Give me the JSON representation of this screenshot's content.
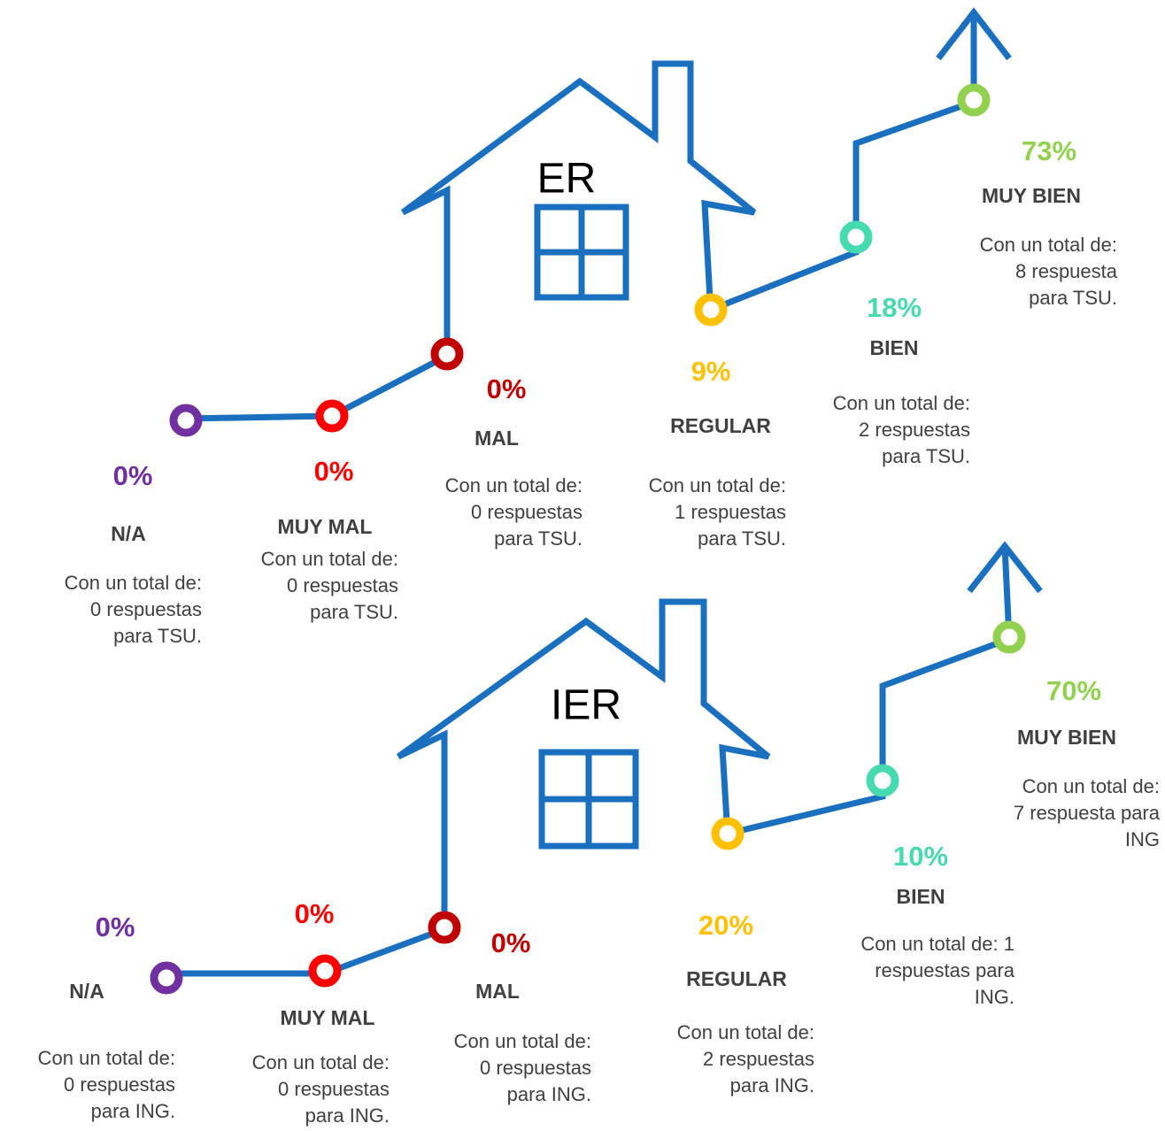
{
  "panels": [
    {
      "title": "ER",
      "items": [
        {
          "percent": "0%",
          "label": "N/A",
          "description": [
            "Con un total de:",
            "0 respuestas",
            "para TSU."
          ]
        },
        {
          "percent": "0%",
          "label": "MUY MAL",
          "description": [
            "Con un total de:",
            "0 respuestas",
            "para TSU."
          ]
        },
        {
          "percent": "0%",
          "label": "MAL",
          "description": [
            "Con un total de:",
            "0 respuestas",
            "para TSU."
          ]
        },
        {
          "percent": "9%",
          "label": "REGULAR",
          "description": [
            "Con un total de:",
            "1 respuestas",
            "para TSU."
          ]
        },
        {
          "percent": "18%",
          "label": "BIEN",
          "description": [
            "Con un total de:",
            "2 respuestas",
            "para TSU."
          ]
        },
        {
          "percent": "73%",
          "label": "MUY BIEN",
          "description": [
            "Con un total de:",
            "8 respuesta",
            "para TSU."
          ]
        }
      ]
    },
    {
      "title": "IER",
      "items": [
        {
          "percent": "0%",
          "label": "N/A",
          "description": [
            "Con un total de:",
            "0 respuestas",
            "para ING."
          ]
        },
        {
          "percent": "0%",
          "label": "MUY MAL",
          "description": [
            "Con un total de:",
            "0 respuestas",
            "para ING."
          ]
        },
        {
          "percent": "0%",
          "label": "MAL",
          "description": [
            "Con un total de:",
            "0 respuestas",
            "para ING."
          ]
        },
        {
          "percent": "20%",
          "label": "REGULAR",
          "description": [
            "Con un total de:",
            "2 respuestas",
            "para ING."
          ]
        },
        {
          "percent": "10%",
          "label": "BIEN",
          "description": [
            "Con un total de: 1",
            "respuestas para",
            "ING."
          ]
        },
        {
          "percent": "70%",
          "label": "MUY BIEN",
          "description": [
            "Con un total de:",
            "7 respuesta para",
            "ING"
          ]
        }
      ]
    }
  ]
}
